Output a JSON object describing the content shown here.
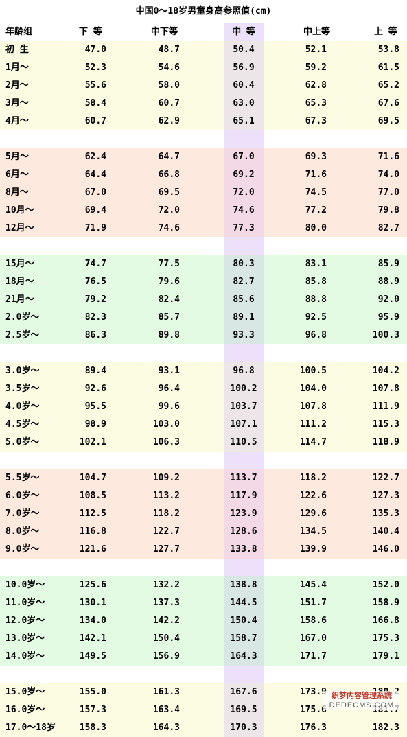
{
  "title": "中国0～18岁男童身高参照值(cm)",
  "headers": [
    "年龄组",
    "下 等",
    "中下等",
    "中 等",
    "中上等",
    "上 等"
  ],
  "groups": [
    {
      "color": "yellow",
      "rows": [
        [
          "初 生",
          "47.0",
          "48.7",
          "50.4",
          "52.1",
          "53.8"
        ],
        [
          "1月～",
          "52.3",
          "54.6",
          "56.9",
          "59.2",
          "61.5"
        ],
        [
          "2月～",
          "55.6",
          "58.0",
          "60.4",
          "62.8",
          "65.2"
        ],
        [
          "3月～",
          "58.4",
          "60.7",
          "63.0",
          "65.3",
          "67.6"
        ],
        [
          "4月～",
          "60.7",
          "62.9",
          "65.1",
          "67.3",
          "69.5"
        ]
      ]
    },
    {
      "color": "peach",
      "rows": [
        [
          "5月～",
          "62.4",
          "64.7",
          "67.0",
          "69.3",
          "71.6"
        ],
        [
          "6月～",
          "64.4",
          "66.8",
          "69.2",
          "71.6",
          "74.0"
        ],
        [
          "8月～",
          "67.0",
          "69.5",
          "72.0",
          "74.5",
          "77.0"
        ],
        [
          "10月～",
          "69.4",
          "72.0",
          "74.6",
          "77.2",
          "79.8"
        ],
        [
          "12月～",
          "71.9",
          "74.6",
          "77.3",
          "80.0",
          "82.7"
        ]
      ]
    },
    {
      "color": "green",
      "rows": [
        [
          "15月～",
          "74.7",
          "77.5",
          "80.3",
          "83.1",
          "85.9"
        ],
        [
          "18月～",
          "76.5",
          "79.6",
          "82.7",
          "85.8",
          "88.9"
        ],
        [
          "21月～",
          "79.2",
          "82.4",
          "85.6",
          "88.8",
          "92.0"
        ],
        [
          "2.0岁～",
          "82.3",
          "85.7",
          "89.1",
          "92.5",
          "95.9"
        ],
        [
          "2.5岁～",
          "86.3",
          "89.8",
          "93.3",
          "96.8",
          "100.3"
        ]
      ]
    },
    {
      "color": "yellow",
      "rows": [
        [
          "3.0岁～",
          "89.4",
          "93.1",
          "96.8",
          "100.5",
          "104.2"
        ],
        [
          "3.5岁～",
          "92.6",
          "96.4",
          "100.2",
          "104.0",
          "107.8"
        ],
        [
          "4.0岁～",
          "95.5",
          "99.6",
          "103.7",
          "107.8",
          "111.9"
        ],
        [
          "4.5岁～",
          "98.9",
          "103.0",
          "107.1",
          "111.2",
          "115.3"
        ],
        [
          "5.0岁～",
          "102.1",
          "106.3",
          "110.5",
          "114.7",
          "118.9"
        ]
      ]
    },
    {
      "color": "peach",
      "rows": [
        [
          "5.5岁～",
          "104.7",
          "109.2",
          "113.7",
          "118.2",
          "122.7"
        ],
        [
          "6.0岁～",
          "108.5",
          "113.2",
          "117.9",
          "122.6",
          "127.3"
        ],
        [
          "7.0岁～",
          "112.5",
          "118.2",
          "123.9",
          "129.6",
          "135.3"
        ],
        [
          "8.0岁～",
          "116.8",
          "122.7",
          "128.6",
          "134.5",
          "140.4"
        ],
        [
          "9.0岁～",
          "121.6",
          "127.7",
          "133.8",
          "139.9",
          "146.0"
        ]
      ]
    },
    {
      "color": "green",
      "rows": [
        [
          "10.0岁～",
          "125.6",
          "132.2",
          "138.8",
          "145.4",
          "152.0"
        ],
        [
          "11.0岁～",
          "130.1",
          "137.3",
          "144.5",
          "151.7",
          "158.9"
        ],
        [
          "12.0岁～",
          "134.0",
          "142.2",
          "150.4",
          "158.6",
          "166.8"
        ],
        [
          "13.0岁～",
          "142.1",
          "150.4",
          "158.7",
          "167.0",
          "175.3"
        ],
        [
          "14.0岁～",
          "149.5",
          "156.9",
          "164.3",
          "171.7",
          "179.1"
        ]
      ]
    },
    {
      "color": "yellow",
      "rows": [
        [
          "15.0岁～",
          "155.0",
          "161.3",
          "167.6",
          "173.9",
          "180.2"
        ],
        [
          "16.0岁～",
          "157.3",
          "163.4",
          "169.5",
          "175.6",
          "181.7"
        ],
        [
          "17.0～18岁",
          "158.3",
          "164.3",
          "170.3",
          "176.3",
          "182.3"
        ]
      ]
    }
  ],
  "watermark": {
    "line1": "织梦内容管理系统",
    "line2": "DEDECMS.COM"
  }
}
